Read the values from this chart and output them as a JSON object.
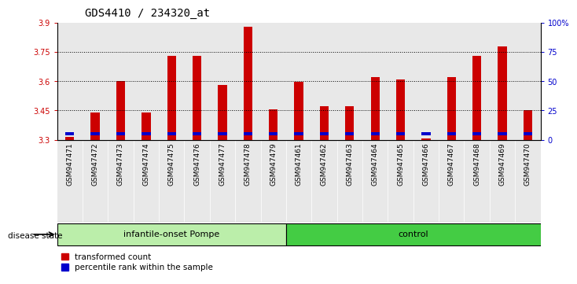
{
  "title": "GDS4410 / 234320_at",
  "samples": [
    "GSM947471",
    "GSM947472",
    "GSM947473",
    "GSM947474",
    "GSM947475",
    "GSM947476",
    "GSM947477",
    "GSM947478",
    "GSM947479",
    "GSM947461",
    "GSM947462",
    "GSM947463",
    "GSM947464",
    "GSM947465",
    "GSM947466",
    "GSM947467",
    "GSM947468",
    "GSM947469",
    "GSM947470"
  ],
  "red_values": [
    3.315,
    3.44,
    3.6,
    3.44,
    3.73,
    3.73,
    3.58,
    3.88,
    3.455,
    3.595,
    3.47,
    3.47,
    3.62,
    3.61,
    3.305,
    3.62,
    3.73,
    3.78,
    3.45
  ],
  "blue_percentiles": [
    2,
    12,
    10,
    8,
    12,
    11,
    12,
    13,
    10,
    9,
    9,
    10,
    10,
    10,
    2,
    9,
    12,
    11,
    9
  ],
  "y_min": 3.3,
  "y_max": 3.9,
  "y_ticks_left": [
    3.3,
    3.45,
    3.6,
    3.75,
    3.9
  ],
  "y_ticks_right": [
    0,
    25,
    50,
    75,
    100
  ],
  "y_ticks_right_labels": [
    "0",
    "25",
    "50",
    "75",
    "100%"
  ],
  "group1_label": "infantile-onset Pompe",
  "group2_label": "control",
  "group1_count": 9,
  "group2_count": 10,
  "disease_state_label": "disease state",
  "legend_red": "transformed count",
  "legend_blue": "percentile rank within the sample",
  "red_color": "#cc0000",
  "blue_color": "#0000cc",
  "group1_bg": "#bbeeaa",
  "group2_bg": "#44cc44",
  "bar_bg": "#e8e8e8",
  "plot_bg": "#ffffff",
  "title_fontsize": 10,
  "tick_fontsize": 7,
  "sample_fontsize": 6.5,
  "bar_width": 0.35
}
